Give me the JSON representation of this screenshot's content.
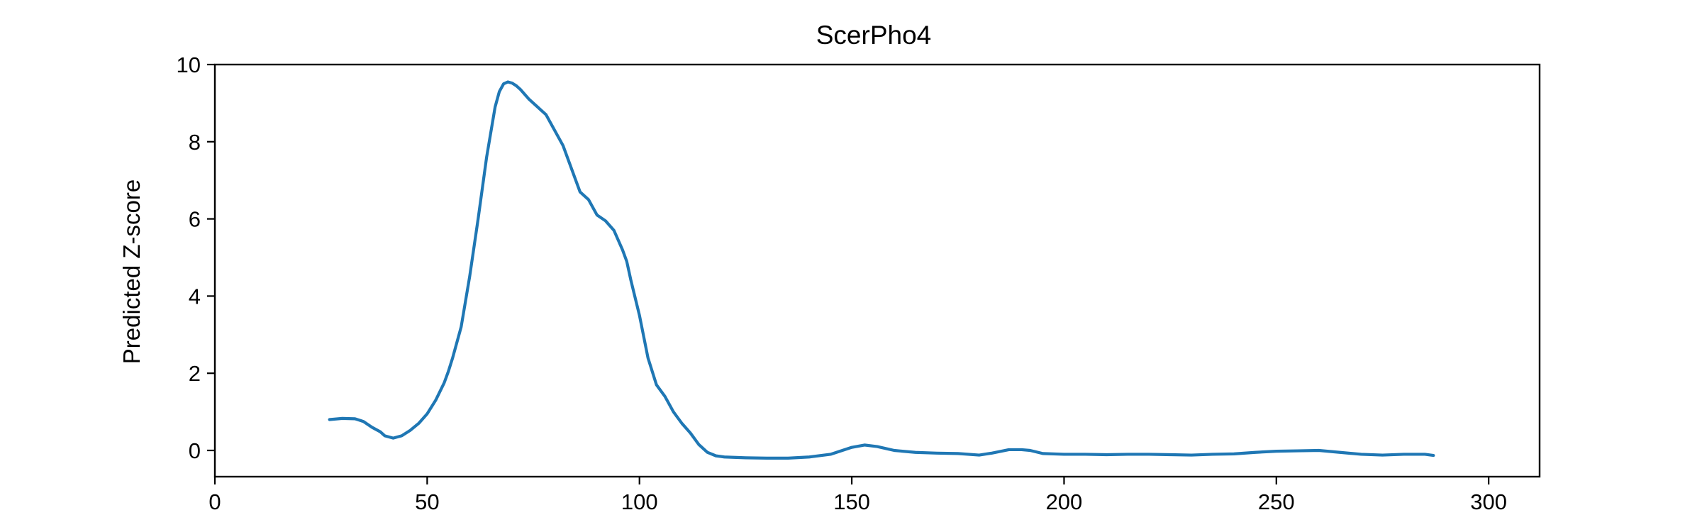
{
  "chart_data": {
    "type": "line",
    "title": "ScerPho4",
    "xlabel": "",
    "ylabel": "Predicted Z-score",
    "xlim": [
      0,
      312
    ],
    "ylim": [
      -0.68,
      10
    ],
    "xticks": [
      0,
      50,
      100,
      150,
      200,
      250,
      300
    ],
    "yticks": [
      0,
      2,
      4,
      6,
      8,
      10
    ],
    "grid": false,
    "legend": "none",
    "line_color": "#1f77b4",
    "series": [
      {
        "x": [
          27,
          30,
          33,
          35,
          37,
          39,
          40,
          42,
          44,
          46,
          48,
          50,
          52,
          54,
          55,
          56,
          58,
          60,
          62,
          64,
          66,
          67,
          68,
          69,
          70,
          71,
          72,
          74,
          76,
          78,
          80,
          82,
          84,
          86,
          88,
          90,
          92,
          94,
          96,
          97,
          98,
          100,
          102,
          104,
          106,
          108,
          110,
          112,
          114,
          116,
          118,
          120,
          125,
          130,
          135,
          140,
          145,
          150,
          153,
          156,
          160,
          165,
          170,
          175,
          180,
          183,
          187,
          190,
          192,
          195,
          200,
          205,
          210,
          215,
          220,
          225,
          230,
          235,
          240,
          245,
          250,
          255,
          260,
          265,
          270,
          275,
          280,
          285,
          287
        ],
        "y": [
          0.8,
          0.83,
          0.82,
          0.75,
          0.6,
          0.48,
          0.38,
          0.32,
          0.38,
          0.52,
          0.7,
          0.95,
          1.3,
          1.75,
          2.05,
          2.4,
          3.2,
          4.5,
          6.0,
          7.6,
          8.9,
          9.3,
          9.5,
          9.55,
          9.52,
          9.45,
          9.35,
          9.1,
          8.9,
          8.7,
          8.3,
          7.9,
          7.3,
          6.7,
          6.5,
          6.1,
          5.95,
          5.7,
          5.2,
          4.9,
          4.4,
          3.5,
          2.4,
          1.7,
          1.4,
          1.0,
          0.7,
          0.45,
          0.15,
          -0.05,
          -0.14,
          -0.17,
          -0.19,
          -0.2,
          -0.2,
          -0.17,
          -0.1,
          0.08,
          0.14,
          0.1,
          0.0,
          -0.05,
          -0.07,
          -0.08,
          -0.12,
          -0.07,
          0.02,
          0.02,
          0.0,
          -0.08,
          -0.1,
          -0.1,
          -0.11,
          -0.1,
          -0.1,
          -0.11,
          -0.12,
          -0.1,
          -0.09,
          -0.05,
          -0.02,
          -0.01,
          0.0,
          -0.05,
          -0.1,
          -0.12,
          -0.1,
          -0.1,
          -0.13
        ]
      }
    ]
  }
}
